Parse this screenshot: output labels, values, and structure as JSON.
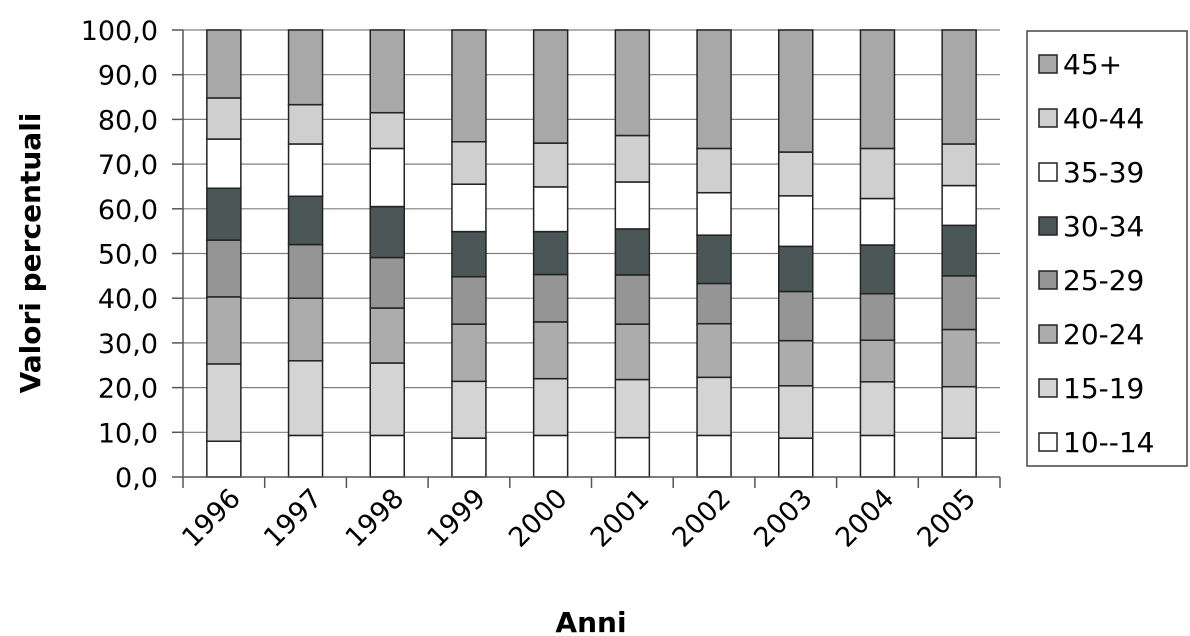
{
  "chart_data": {
    "type": "bar",
    "stacked": true,
    "xlabel": "Anni",
    "ylabel": "Valori percentuali",
    "ylim": [
      0,
      100
    ],
    "yticks": [
      "0,0",
      "10,0",
      "20,0",
      "30,0",
      "40,0",
      "50,0",
      "60,0",
      "70,0",
      "80,0",
      "90,0",
      "100,0"
    ],
    "categories": [
      "1996",
      "1997",
      "1998",
      "1999",
      "2000",
      "2001",
      "2002",
      "2003",
      "2004",
      "2005"
    ],
    "grid": true,
    "legend_position": "right",
    "series": [
      {
        "name": "10--14",
        "color": "#ffffff",
        "values": [
          8.0,
          9.3,
          9.3,
          8.7,
          9.3,
          8.8,
          9.3,
          8.7,
          9.3,
          8.7
        ]
      },
      {
        "name": "15-19",
        "color": "#d4d4d4",
        "values": [
          17.3,
          16.7,
          16.2,
          12.7,
          12.7,
          13.0,
          13.0,
          11.7,
          12.0,
          11.5
        ]
      },
      {
        "name": "20-24",
        "color": "#acacac",
        "values": [
          15.0,
          14.0,
          12.3,
          12.8,
          12.7,
          12.4,
          12.0,
          10.1,
          9.3,
          12.8
        ]
      },
      {
        "name": "25-29",
        "color": "#959595",
        "values": [
          12.7,
          12.0,
          11.3,
          10.6,
          10.6,
          11.0,
          9.0,
          11.0,
          10.4,
          12.0
        ]
      },
      {
        "name": "30-34",
        "color": "#4b5656",
        "values": [
          11.6,
          10.8,
          11.4,
          10.1,
          9.6,
          10.3,
          10.8,
          10.1,
          10.9,
          11.3
        ]
      },
      {
        "name": "35-39",
        "color": "#ffffff",
        "values": [
          11.0,
          11.7,
          13.0,
          10.6,
          10.0,
          10.5,
          9.5,
          11.3,
          10.4,
          8.9
        ]
      },
      {
        "name": "40-44",
        "color": "#cfcfcf",
        "values": [
          9.2,
          8.8,
          8.0,
          9.5,
          9.8,
          10.4,
          9.9,
          9.8,
          11.2,
          9.3
        ]
      },
      {
        "name": "45+",
        "color": "#a8a8a8",
        "values": [
          15.2,
          16.7,
          18.5,
          25.0,
          25.3,
          23.6,
          26.5,
          27.3,
          26.5,
          25.5
        ]
      }
    ]
  }
}
